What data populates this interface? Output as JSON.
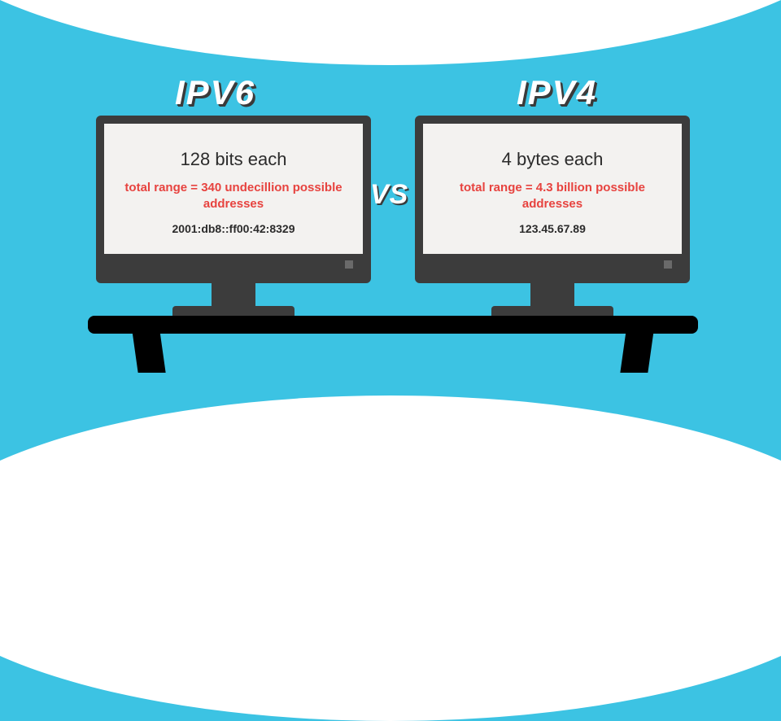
{
  "type": "infographic",
  "background_color": "#3cc3e3",
  "arc_color": "#ffffff",
  "title_color": "#ffffff",
  "title_shadow_color": "#3a3a3a",
  "vs_text": "VS",
  "monitor_frame_color": "#3c3c3c",
  "screen_bg_color": "#f3f2f0",
  "text_dark_color": "#2b2b2b",
  "highlight_color": "#e7433f",
  "table_color": "#000000",
  "left": {
    "title": "IPV6",
    "line1": "128 bits each",
    "line2": "total range = 340 undecillion possible addresses",
    "line3": "2001:db8::ff00:42:8329"
  },
  "right": {
    "title": "IPV4",
    "line1": "4 bytes each",
    "line2": "total range = 4.3 billion possible addresses",
    "line3": "123.45.67.89"
  }
}
